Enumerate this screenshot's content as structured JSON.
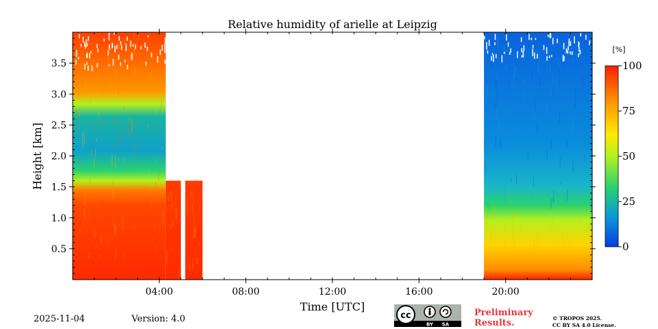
{
  "chart_data": {
    "type": "heatmap",
    "title": "Relative humidity of arielle at Leipzig",
    "xlabel": "Time [UTC]",
    "ylabel": "Height [km]",
    "xlim": [
      0,
      24
    ],
    "ylim": [
      0,
      4.0
    ],
    "x_ticks": [
      {
        "value": 4,
        "label": "04:00"
      },
      {
        "value": 8,
        "label": "08:00"
      },
      {
        "value": 12,
        "label": "12:00"
      },
      {
        "value": 16,
        "label": "16:00"
      },
      {
        "value": 20,
        "label": "20:00"
      }
    ],
    "y_ticks": [
      {
        "value": 0.5,
        "label": "0.5"
      },
      {
        "value": 1.0,
        "label": "1.0"
      },
      {
        "value": 1.5,
        "label": "1.5"
      },
      {
        "value": 2.0,
        "label": "2.0"
      },
      {
        "value": 2.5,
        "label": "2.5"
      },
      {
        "value": 3.0,
        "label": "3.0"
      },
      {
        "value": 3.5,
        "label": "3.5"
      }
    ],
    "colorbar": {
      "unit": "[%]",
      "min": 0,
      "max": 100,
      "ticks": [
        {
          "value": 0,
          "label": "0"
        },
        {
          "value": 25,
          "label": "25"
        },
        {
          "value": 50,
          "label": "50"
        },
        {
          "value": 75,
          "label": "75"
        },
        {
          "value": 100,
          "label": "100"
        }
      ],
      "colormap": [
        "#0a3cdc",
        "#0a96dc",
        "#2ad26e",
        "#b4f01e",
        "#ffeb00",
        "#ff9600",
        "#ff1e00"
      ]
    },
    "data_segments": [
      {
        "name": "early-morning",
        "t_start": 0.0,
        "t_end": 4.3,
        "layers": [
          {
            "h0": 0.0,
            "h1": 1.45,
            "rh": 88
          },
          {
            "h0": 1.45,
            "h1": 1.75,
            "rh": 60
          },
          {
            "h0": 1.75,
            "h1": 2.6,
            "rh": 30
          },
          {
            "h0": 2.6,
            "h1": 2.9,
            "rh": 60
          },
          {
            "h0": 2.9,
            "h1": 4.0,
            "rh": 85
          }
        ]
      },
      {
        "name": "morning-gap-1",
        "t_start": 4.3,
        "t_end": 5.0,
        "layers": [
          {
            "h0": 0.0,
            "h1": 1.6,
            "rh": 88
          }
        ]
      },
      {
        "name": "morning-gap-2",
        "t_start": 5.2,
        "t_end": 6.0,
        "layers": [
          {
            "h0": 0.0,
            "h1": 1.6,
            "rh": 86
          }
        ]
      },
      {
        "name": "evening",
        "t_start": 19.0,
        "t_end": 24.0,
        "layers": [
          {
            "h0": 0.0,
            "h1": 0.1,
            "rh": 95
          },
          {
            "h0": 0.1,
            "h1": 0.6,
            "rh": 75
          },
          {
            "h0": 0.6,
            "h1": 1.0,
            "rh": 50
          },
          {
            "h0": 1.0,
            "h1": 1.3,
            "rh": 30
          },
          {
            "h0": 1.3,
            "h1": 4.0,
            "rh": 10
          }
        ]
      }
    ]
  },
  "footer": {
    "date": "2025-11-04",
    "version": "Version: 4.0",
    "preliminary_line1": "Preliminary",
    "preliminary_line2": "Results.",
    "copyright_line1": "© TROPOS 2025.",
    "copyright_line2": "CC BY SA 4.0 License.",
    "cc_label": "cc",
    "cc_by": "BY",
    "cc_sa": "SA"
  }
}
